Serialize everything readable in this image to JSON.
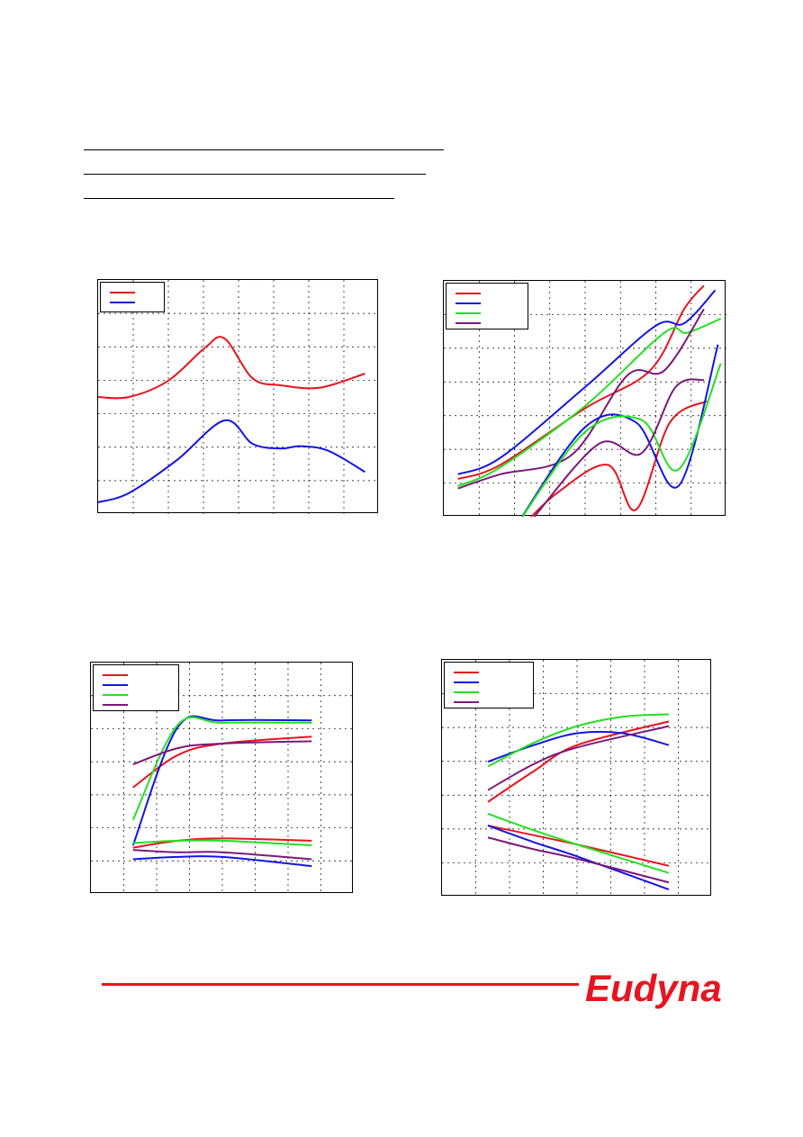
{
  "brand": {
    "logo_text": "Eudyna",
    "color": "#e8141e"
  },
  "charts": [
    {
      "id": "chart-1",
      "series": [
        {
          "color": "#e8141e",
          "points": [
            [
              0,
              0.5
            ],
            [
              0.11,
              0.5
            ],
            [
              0.25,
              0.57
            ],
            [
              0.38,
              0.71
            ],
            [
              0.45,
              0.75
            ],
            [
              0.55,
              0.58
            ],
            [
              0.65,
              0.55
            ],
            [
              0.79,
              0.54
            ],
            [
              0.95,
              0.6
            ]
          ]
        },
        {
          "color": "#1414e6",
          "points": [
            [
              0,
              0.05
            ],
            [
              0.11,
              0.09
            ],
            [
              0.28,
              0.23
            ],
            [
              0.45,
              0.4
            ],
            [
              0.55,
              0.3
            ],
            [
              0.65,
              0.28
            ],
            [
              0.72,
              0.29
            ],
            [
              0.82,
              0.27
            ],
            [
              0.95,
              0.18
            ]
          ]
        }
      ],
      "legend_entries": 2
    },
    {
      "id": "chart-2",
      "series": [
        {
          "color": "#e8141e",
          "points": [
            [
              0.05,
              0.16
            ],
            [
              0.2,
              0.22
            ],
            [
              0.5,
              0.46
            ],
            [
              0.73,
              0.62
            ],
            [
              0.85,
              0.88
            ],
            [
              0.92,
              0.98
            ]
          ]
        },
        {
          "color": "#1414e6",
          "points": [
            [
              0.05,
              0.18
            ],
            [
              0.2,
              0.25
            ],
            [
              0.5,
              0.55
            ],
            [
              0.75,
              0.81
            ],
            [
              0.85,
              0.82
            ],
            [
              0.96,
              0.96
            ]
          ]
        },
        {
          "color": "#22e022",
          "points": [
            [
              0.05,
              0.13
            ],
            [
              0.2,
              0.21
            ],
            [
              0.5,
              0.47
            ],
            [
              0.78,
              0.78
            ],
            [
              0.86,
              0.78
            ],
            [
              0.98,
              0.84
            ]
          ]
        },
        {
          "color": "#7a1a7a",
          "points": [
            [
              0.05,
              0.12
            ],
            [
              0.2,
              0.18
            ],
            [
              0.45,
              0.26
            ],
            [
              0.65,
              0.6
            ],
            [
              0.78,
              0.62
            ],
            [
              0.92,
              0.88
            ]
          ]
        },
        {
          "color": "#e8141e",
          "points": [
            [
              0.27,
              -0.05
            ],
            [
              0.4,
              0.1
            ],
            [
              0.58,
              0.22
            ],
            [
              0.68,
              0.03
            ],
            [
              0.8,
              0.4
            ],
            [
              0.93,
              0.49
            ]
          ]
        },
        {
          "color": "#1414e6",
          "points": [
            [
              0.25,
              -0.05
            ],
            [
              0.5,
              0.38
            ],
            [
              0.68,
              0.4
            ],
            [
              0.83,
              0.13
            ],
            [
              0.97,
              0.73
            ]
          ]
        },
        {
          "color": "#22e022",
          "points": [
            [
              0.25,
              -0.05
            ],
            [
              0.5,
              0.36
            ],
            [
              0.7,
              0.41
            ],
            [
              0.83,
              0.2
            ],
            [
              0.98,
              0.65
            ]
          ]
        },
        {
          "color": "#7a1a7a",
          "points": [
            [
              0.32,
              0.0
            ],
            [
              0.55,
              0.31
            ],
            [
              0.7,
              0.27
            ],
            [
              0.82,
              0.55
            ],
            [
              0.92,
              0.58
            ]
          ]
        }
      ],
      "legend_entries": 4
    },
    {
      "id": "chart-3",
      "series": [
        {
          "color": "#e8141e",
          "points": [
            [
              0.16,
              0.46
            ],
            [
              0.33,
              0.6
            ],
            [
              0.5,
              0.65
            ],
            [
              0.84,
              0.68
            ]
          ]
        },
        {
          "color": "#1414e6",
          "points": [
            [
              0.16,
              0.21
            ],
            [
              0.33,
              0.72
            ],
            [
              0.5,
              0.75
            ],
            [
              0.84,
              0.75
            ]
          ]
        },
        {
          "color": "#22e022",
          "points": [
            [
              0.16,
              0.32
            ],
            [
              0.33,
              0.73
            ],
            [
              0.5,
              0.74
            ],
            [
              0.84,
              0.74
            ]
          ]
        },
        {
          "color": "#7a1a7a",
          "points": [
            [
              0.16,
              0.56
            ],
            [
              0.33,
              0.63
            ],
            [
              0.5,
              0.65
            ],
            [
              0.84,
              0.66
            ]
          ]
        },
        {
          "color": "#e8141e",
          "points": [
            [
              0.16,
              0.2
            ],
            [
              0.33,
              0.23
            ],
            [
              0.5,
              0.24
            ],
            [
              0.84,
              0.23
            ]
          ]
        },
        {
          "color": "#1414e6",
          "points": [
            [
              0.16,
              0.15
            ],
            [
              0.33,
              0.16
            ],
            [
              0.5,
              0.16
            ],
            [
              0.84,
              0.12
            ]
          ]
        },
        {
          "color": "#22e022",
          "points": [
            [
              0.16,
              0.22
            ],
            [
              0.33,
              0.23
            ],
            [
              0.5,
              0.23
            ],
            [
              0.84,
              0.21
            ]
          ]
        },
        {
          "color": "#7a1a7a",
          "points": [
            [
              0.16,
              0.19
            ],
            [
              0.33,
              0.18
            ],
            [
              0.5,
              0.18
            ],
            [
              0.84,
              0.15
            ]
          ]
        }
      ],
      "legend_entries": 4
    },
    {
      "id": "chart-4",
      "series": [
        {
          "color": "#e8141e",
          "points": [
            [
              0.17,
              0.4
            ],
            [
              0.34,
              0.53
            ],
            [
              0.5,
              0.64
            ],
            [
              0.84,
              0.74
            ]
          ]
        },
        {
          "color": "#1414e6",
          "points": [
            [
              0.17,
              0.57
            ],
            [
              0.34,
              0.64
            ],
            [
              0.5,
              0.69
            ],
            [
              0.67,
              0.69
            ],
            [
              0.84,
              0.64
            ]
          ]
        },
        {
          "color": "#22e022",
          "points": [
            [
              0.17,
              0.55
            ],
            [
              0.34,
              0.65
            ],
            [
              0.5,
              0.72
            ],
            [
              0.67,
              0.76
            ],
            [
              0.84,
              0.77
            ]
          ]
        },
        {
          "color": "#7a1a7a",
          "points": [
            [
              0.17,
              0.45
            ],
            [
              0.34,
              0.56
            ],
            [
              0.5,
              0.63
            ],
            [
              0.84,
              0.72
            ]
          ]
        },
        {
          "color": "#e8141e",
          "points": [
            [
              0.17,
              0.3
            ],
            [
              0.5,
              0.22
            ],
            [
              0.84,
              0.13
            ]
          ]
        },
        {
          "color": "#1414e6",
          "points": [
            [
              0.17,
              0.3
            ],
            [
              0.34,
              0.23
            ],
            [
              0.5,
              0.17
            ],
            [
              0.84,
              0.03
            ]
          ]
        },
        {
          "color": "#22e022",
          "points": [
            [
              0.17,
              0.35
            ],
            [
              0.34,
              0.28
            ],
            [
              0.5,
              0.22
            ],
            [
              0.84,
              0.1
            ]
          ]
        },
        {
          "color": "#7a1a7a",
          "points": [
            [
              0.17,
              0.25
            ],
            [
              0.34,
              0.2
            ],
            [
              0.5,
              0.16
            ],
            [
              0.84,
              0.06
            ]
          ]
        }
      ],
      "legend_entries": 4
    }
  ]
}
